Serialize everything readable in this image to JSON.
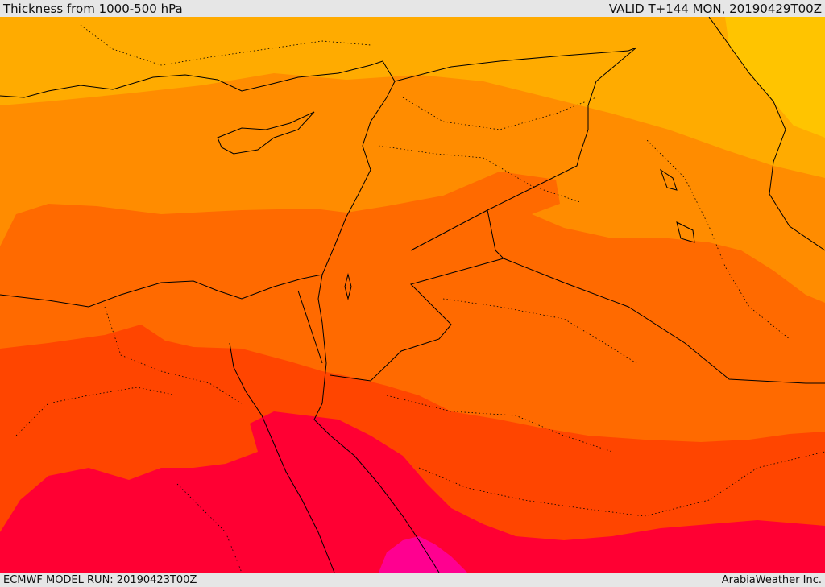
{
  "header": {
    "title": "Thickness from 1000-500 hPa",
    "valid": "VALID T+144 MON, 20190429T00Z"
  },
  "footer": {
    "model_run": "ECMWF MODEL RUN: 20190423T00Z",
    "credit": "ArabiaWeather Inc."
  },
  "colors": {
    "yellow": "#ffc400",
    "light_orange": "#ffab00",
    "orange": "#ff8c00",
    "dark_orange": "#ff6a00",
    "red_orange": "#ff4500",
    "red": "#ff0033",
    "magenta": "#ff0090",
    "border": "#000000"
  }
}
